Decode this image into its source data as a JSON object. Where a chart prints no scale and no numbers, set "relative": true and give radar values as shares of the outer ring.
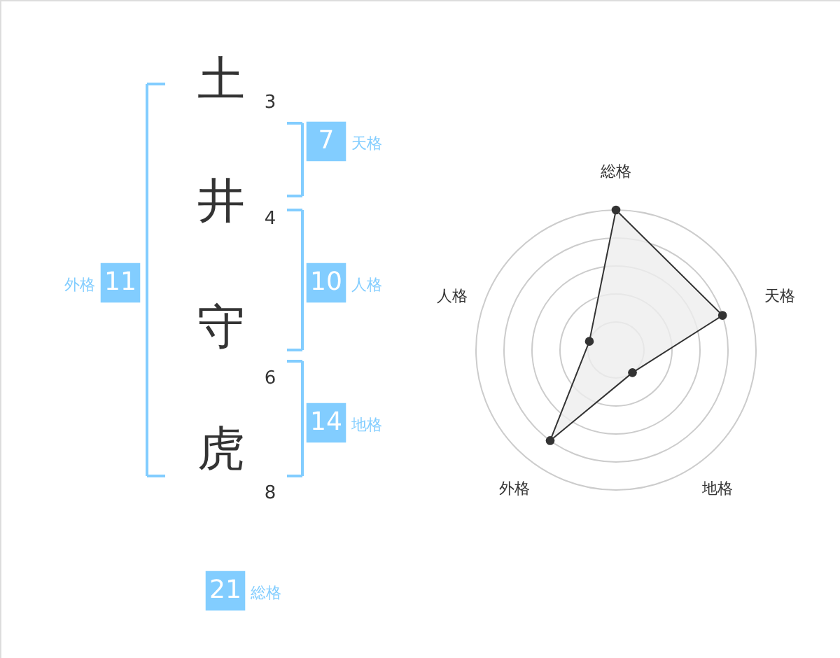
{
  "chart_data": [
    {
      "type": "other",
      "categories": [
        "土",
        "井",
        "守",
        "虎"
      ],
      "values": [
        3,
        4,
        6,
        8
      ],
      "data_labels": true,
      "color": "#82cdff",
      "annotations": [
        "7",
        "天格",
        "10",
        "人格",
        "14",
        "地格",
        "11",
        "外格",
        "21",
        "総格"
      ]
    },
    {
      "type": "radar",
      "categories": [
        "総格",
        "天格",
        "地格",
        "外格",
        "人格"
      ],
      "relative": true,
      "grid": true,
      "marker": "circle",
      "series": [
        {
          "color": "#333333",
          "values": [
            1,
            0.8,
            0.2,
            0.8,
            0.2
          ]
        }
      ]
    }
  ]
}
